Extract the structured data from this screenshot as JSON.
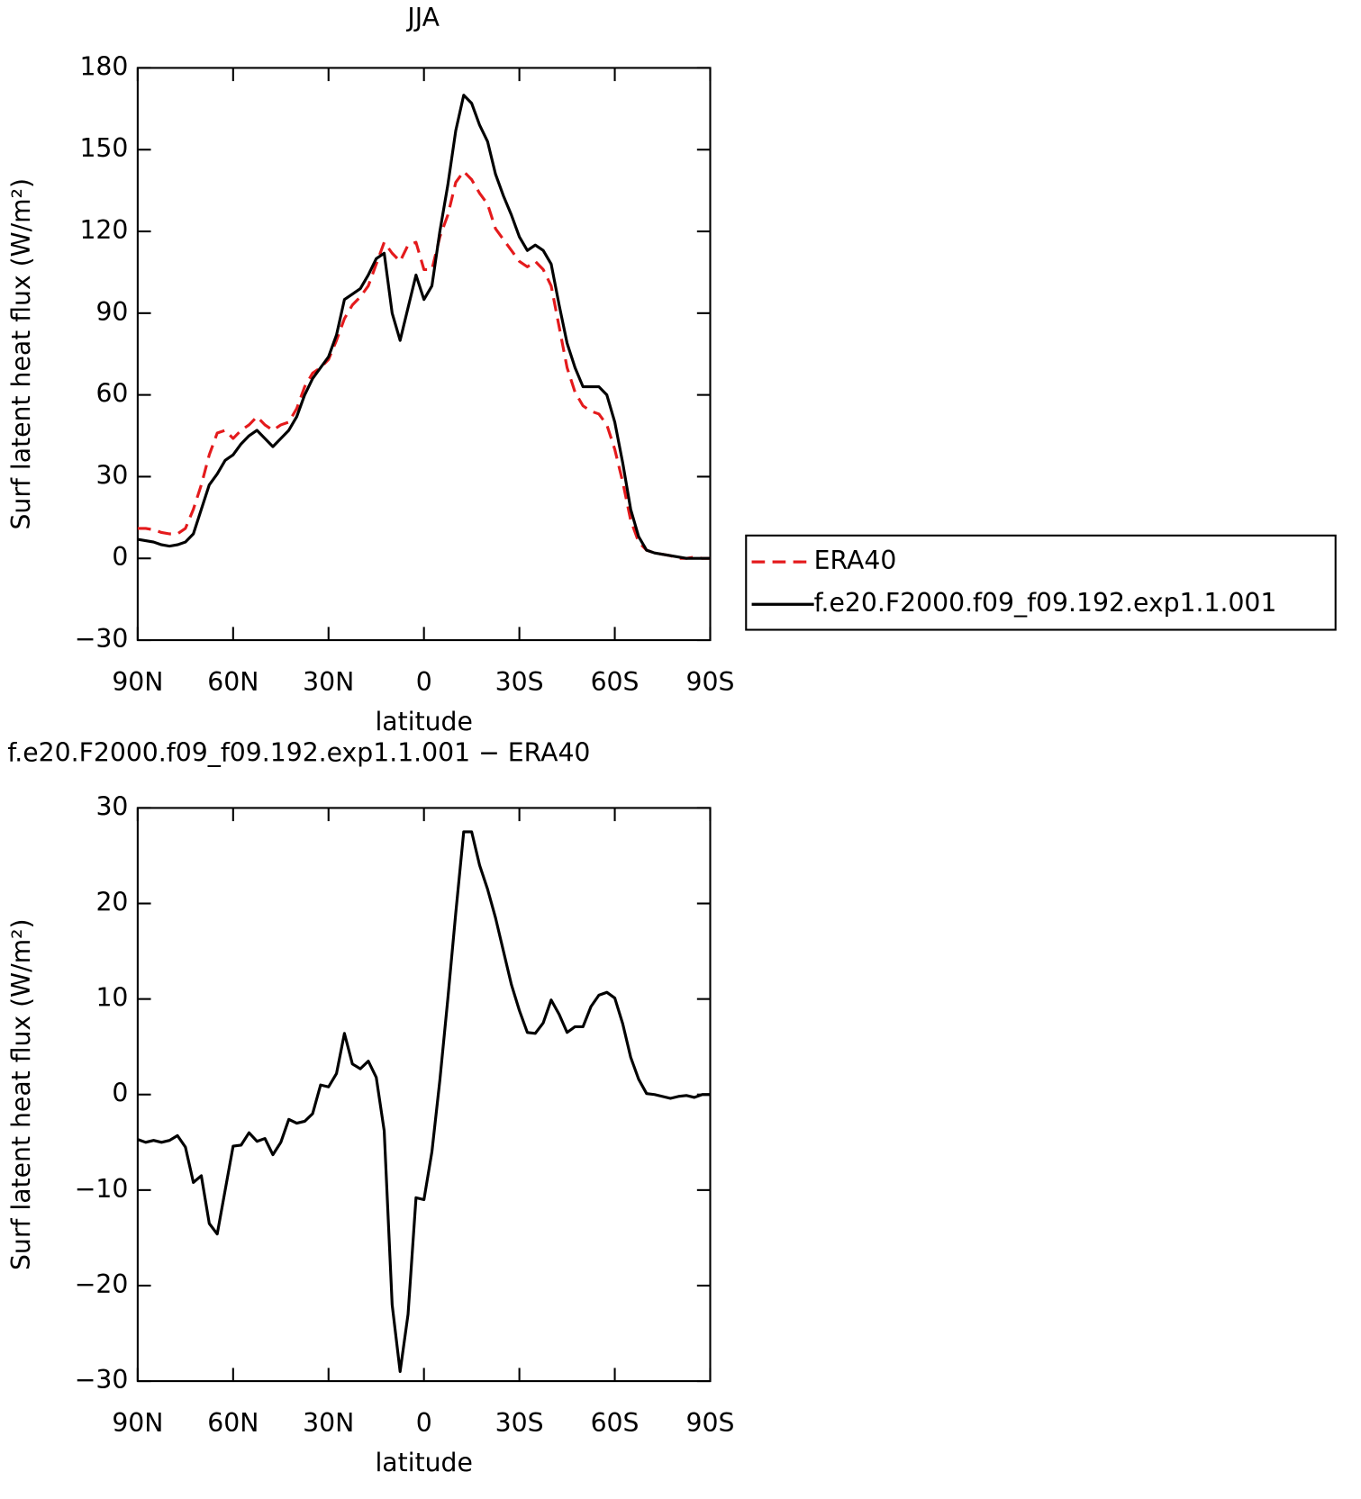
{
  "chart_data": [
    {
      "type": "line",
      "title": "JJA",
      "xlabel": "latitude",
      "ylabel": "Surf latent heat flux (W/m²)",
      "x": [
        90,
        87.5,
        85,
        82.5,
        80,
        77.5,
        75,
        72.5,
        70,
        67.5,
        65,
        62.5,
        60,
        57.5,
        55,
        52.5,
        50,
        47.5,
        45,
        42.5,
        40,
        37.5,
        35,
        32.5,
        30,
        27.5,
        25,
        22.5,
        20,
        17.5,
        15,
        12.5,
        10,
        7.5,
        5,
        2.5,
        0,
        -2.5,
        -5,
        -7.5,
        -10,
        -12.5,
        -15,
        -17.5,
        -20,
        -22.5,
        -25,
        -27.5,
        -30,
        -32.5,
        -35,
        -37.5,
        -40,
        -42.5,
        -45,
        -47.5,
        -50,
        -52.5,
        -55,
        -57.5,
        -60,
        -62.5,
        -65,
        -67.5,
        -70,
        -72.5,
        -75,
        -77.5,
        -80,
        -82.5,
        -85,
        -87.5,
        -90
      ],
      "series": [
        {
          "name": "ERA40",
          "color": "#e41a1c",
          "linestyle": "dashed",
          "values": [
            11,
            11,
            10.5,
            9.5,
            9,
            9,
            11,
            18,
            27,
            38,
            46,
            47,
            44,
            47,
            49,
            52,
            49,
            47,
            49,
            50,
            55,
            63,
            68,
            70,
            73,
            80,
            88,
            93,
            96,
            100,
            108,
            116,
            112,
            109,
            115,
            116,
            106,
            106,
            118,
            126,
            138,
            142,
            139,
            134,
            130,
            121,
            117,
            113,
            109,
            107,
            109,
            106,
            100,
            85,
            70,
            61,
            56,
            54,
            53,
            49,
            40,
            28,
            14,
            6,
            3,
            2,
            1.5,
            1,
            0,
            0,
            0.5,
            0,
            0
          ]
        },
        {
          "name": "f.e20.F2000.f09_f09.192.exp1.1.001",
          "color": "#000000",
          "linestyle": "solid",
          "values": [
            7,
            6.5,
            6,
            5,
            4.5,
            5,
            6,
            9,
            18,
            27,
            31,
            36,
            38,
            42,
            45,
            47,
            44,
            41,
            44,
            47,
            52,
            60,
            66,
            70,
            74,
            82,
            95,
            97,
            99,
            104,
            110,
            112,
            90,
            80,
            92,
            104,
            95,
            100,
            120,
            137,
            157,
            170,
            167,
            159,
            153,
            141,
            133,
            126,
            118,
            113,
            115,
            113,
            108,
            93,
            79,
            70,
            63,
            63,
            63,
            60,
            50,
            35,
            18,
            8,
            3,
            2,
            1.5,
            1,
            0.5,
            0,
            0,
            0,
            0
          ]
        }
      ],
      "xlim": [
        90,
        -90
      ],
      "xticks": [
        {
          "value": 90,
          "label": "90N"
        },
        {
          "value": 60,
          "label": "60N"
        },
        {
          "value": 30,
          "label": "30N"
        },
        0,
        {
          "value": -30,
          "label": "30S"
        },
        {
          "value": -60,
          "label": "60S"
        },
        {
          "value": -90,
          "label": "90S"
        }
      ],
      "ylim": [
        -30,
        180
      ],
      "yticks": [
        {
          "value": -30,
          "label": "−30"
        },
        0,
        30,
        60,
        90,
        120,
        150,
        180
      ],
      "legend": "right"
    },
    {
      "type": "line",
      "title": "f.e20.F2000.f09_f09.192.exp1.1.001 − ERA40",
      "xlabel": "latitude",
      "ylabel": "Surf latent heat flux (W/m²)",
      "x": [
        90,
        87.5,
        85,
        82.5,
        80,
        77.5,
        75,
        72.5,
        70,
        67.5,
        65,
        62.5,
        60,
        57.5,
        55,
        52.5,
        50,
        47.5,
        45,
        42.5,
        40,
        37.5,
        35,
        32.5,
        30,
        27.5,
        25,
        22.5,
        20,
        17.5,
        15,
        12.5,
        10,
        7.5,
        5,
        2.5,
        0,
        -2.5,
        -5,
        -7.5,
        -10,
        -12.5,
        -15,
        -17.5,
        -20,
        -22.5,
        -25,
        -27.5,
        -30,
        -32.5,
        -35,
        -37.5,
        -40,
        -42.5,
        -45,
        -47.5,
        -50,
        -52.5,
        -55,
        -57.5,
        -60,
        -62.5,
        -65,
        -67.5,
        -70,
        -72.5,
        -75,
        -77.5,
        -80,
        -82.5,
        -85,
        -87.5,
        -90
      ],
      "series": [
        {
          "color": "#000000",
          "linestyle": "solid",
          "values": [
            -4.7,
            -5,
            -4.8,
            -5,
            -4.8,
            -4.3,
            -5.5,
            -9.2,
            -8.5,
            -13.5,
            -14.6,
            -10,
            -5.4,
            -5.3,
            -4,
            -4.9,
            -4.6,
            -6.3,
            -5,
            -2.6,
            -3,
            -2.8,
            -2,
            1,
            0.8,
            2.2,
            6.4,
            3.2,
            2.7,
            3.5,
            1.8,
            -3.8,
            -22,
            -29,
            -23,
            -10.8,
            -11,
            -6,
            1.5,
            10,
            19,
            27.5,
            27.5,
            24,
            21.5,
            18.5,
            15,
            11.5,
            8.8,
            6.5,
            6.4,
            7.5,
            9.9,
            8.4,
            6.5,
            7.1,
            7.1,
            9.2,
            10.4,
            10.7,
            10.1,
            7.4,
            3.9,
            1.6,
            0.1,
            0,
            -0.2,
            -0.4,
            -0.2,
            -0.1,
            -0.3,
            0,
            0
          ]
        }
      ],
      "xlim": [
        90,
        -90
      ],
      "xticks": [
        {
          "value": 90,
          "label": "90N"
        },
        {
          "value": 60,
          "label": "60N"
        },
        {
          "value": 30,
          "label": "30N"
        },
        0,
        {
          "value": -30,
          "label": "30S"
        },
        {
          "value": -60,
          "label": "60S"
        },
        {
          "value": -90,
          "label": "90S"
        }
      ],
      "ylim": [
        -30,
        30
      ],
      "yticks": [
        {
          "value": -30,
          "label": "−30"
        },
        {
          "value": -20,
          "label": "−20"
        },
        {
          "value": -10,
          "label": "−10"
        },
        0,
        10,
        20,
        30
      ]
    }
  ]
}
